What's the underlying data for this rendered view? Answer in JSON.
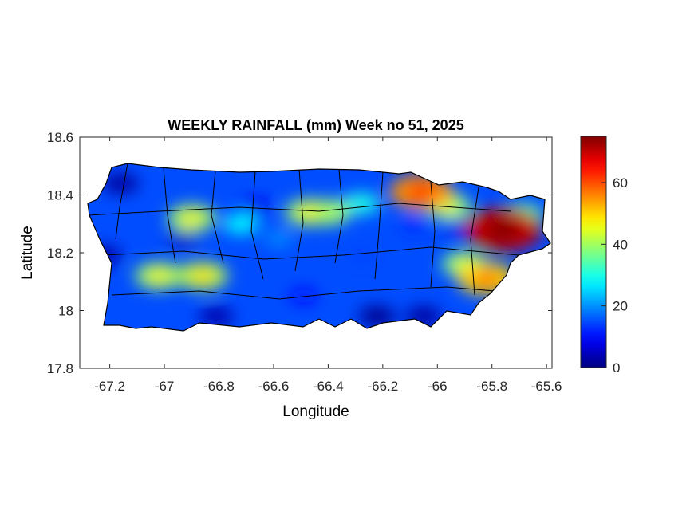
{
  "chart_data": {
    "type": "heatmap",
    "title": "WEEKLY RAINFALL (mm) Week no 51, 2025",
    "xlabel": "Longitude",
    "ylabel": "Latitude",
    "xlim": [
      -67.31,
      -65.58
    ],
    "ylim": [
      17.8,
      18.6
    ],
    "xticks": [
      "-67.2",
      "-67",
      "-66.8",
      "-66.6",
      "-66.4",
      "-66.2",
      "-66",
      "-65.8",
      "-65.6"
    ],
    "xtick_values": [
      -67.2,
      -67,
      -66.8,
      -66.6,
      -66.4,
      -66.2,
      -66,
      -65.8,
      -65.6
    ],
    "yticks": [
      "17.8",
      "18",
      "18.2",
      "18.4",
      "18.6"
    ],
    "ytick_values": [
      17.8,
      18,
      18.2,
      18.4,
      18.6
    ],
    "colorbar": {
      "colormap": "jet",
      "range": [
        0,
        75
      ],
      "ticks": [
        "0",
        "20",
        "40",
        "60"
      ],
      "tick_values": [
        0,
        20,
        40,
        60
      ]
    },
    "background_value": 15,
    "samples": [
      {
        "lon": -65.76,
        "lat": 18.28,
        "mm": 70
      },
      {
        "lon": -66.06,
        "lat": 18.41,
        "mm": 55
      },
      {
        "lon": -65.82,
        "lat": 18.11,
        "mm": 50
      },
      {
        "lon": -66.9,
        "lat": 18.32,
        "mm": 40
      },
      {
        "lon": -67.02,
        "lat": 18.12,
        "mm": 40
      },
      {
        "lon": -66.86,
        "lat": 18.12,
        "mm": 42
      },
      {
        "lon": -66.47,
        "lat": 18.34,
        "mm": 40
      },
      {
        "lon": -66.4,
        "lat": 18.34,
        "mm": 38
      },
      {
        "lon": -65.96,
        "lat": 18.36,
        "mm": 38
      },
      {
        "lon": -65.69,
        "lat": 18.33,
        "mm": 35
      },
      {
        "lon": -65.9,
        "lat": 18.16,
        "mm": 38
      },
      {
        "lon": -66.72,
        "lat": 18.3,
        "mm": 28
      },
      {
        "lon": -66.28,
        "lat": 18.37,
        "mm": 30
      },
      {
        "lon": -66.58,
        "lat": 18.25,
        "mm": 20
      },
      {
        "lon": -67.16,
        "lat": 18.44,
        "mm": 2
      },
      {
        "lon": -67.22,
        "lat": 18.19,
        "mm": 3
      },
      {
        "lon": -66.22,
        "lat": 17.98,
        "mm": 1
      },
      {
        "lon": -66.05,
        "lat": 17.98,
        "mm": 2
      },
      {
        "lon": -66.81,
        "lat": 17.98,
        "mm": 3
      },
      {
        "lon": -66.93,
        "lat": 18.25,
        "mm": 5
      },
      {
        "lon": -66.66,
        "lat": 18.36,
        "mm": 8
      },
      {
        "lon": -66.08,
        "lat": 18.3,
        "mm": 12
      },
      {
        "lon": -65.93,
        "lat": 18.29,
        "mm": 8
      },
      {
        "lon": -66.28,
        "lat": 18.19,
        "mm": 14
      },
      {
        "lon": -66.49,
        "lat": 18.05,
        "mm": 10
      }
    ]
  }
}
